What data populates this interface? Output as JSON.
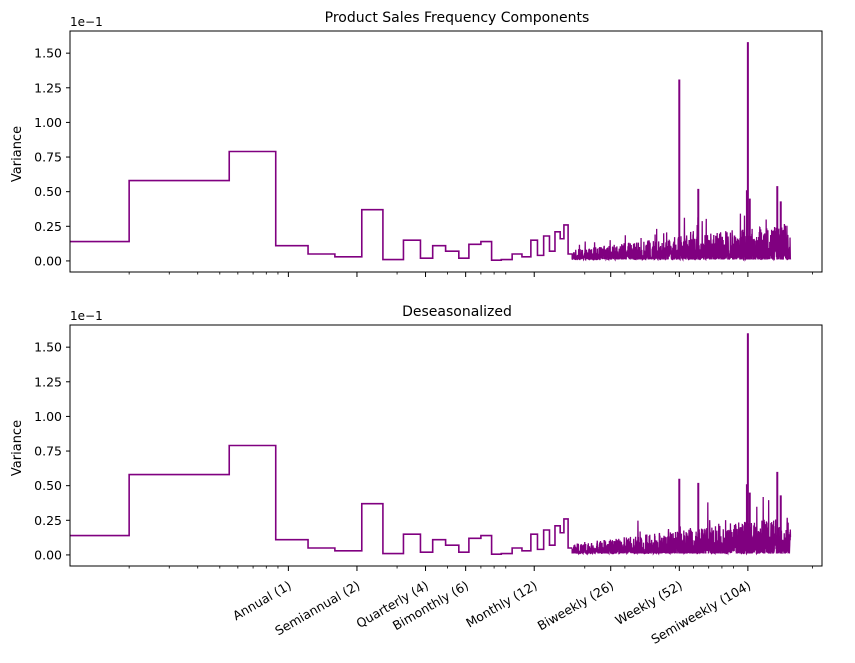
{
  "chart_data": [
    {
      "type": "line",
      "title": "Product Sales Frequency Components",
      "ylabel": "Variance",
      "xlabel": "",
      "y_offset_label": "1e−1",
      "ylim": [
        -0.08,
        1.66
      ],
      "yticks": [
        "0.00",
        "0.25",
        "0.50",
        "0.75",
        "1.00",
        "1.25",
        "1.50"
      ],
      "x_scale": "log",
      "xlim": [
        0.11,
        220
      ],
      "xticks": [],
      "xtick_positions": [
        1,
        2,
        4,
        6,
        12,
        26,
        52,
        104
      ],
      "grid": false,
      "color": "#800080",
      "step_segments": [
        {
          "x": [
            0.11,
            0.2
          ],
          "y": 0.14
        },
        {
          "x": [
            0.2,
            0.55
          ],
          "y": 0.58
        },
        {
          "x": [
            0.55,
            0.88
          ],
          "y": 0.79
        },
        {
          "x": [
            0.88,
            1.22
          ],
          "y": 0.11
        },
        {
          "x": [
            1.22,
            1.6
          ],
          "y": 0.05
        },
        {
          "x": [
            1.6,
            2.1
          ],
          "y": 0.03
        },
        {
          "x": [
            2.1,
            2.6
          ],
          "y": 0.37
        },
        {
          "x": [
            2.6,
            3.2
          ],
          "y": 0.01
        },
        {
          "x": [
            3.2,
            3.8
          ],
          "y": 0.15
        },
        {
          "x": [
            3.8,
            4.3
          ],
          "y": 0.02
        },
        {
          "x": [
            4.3,
            4.9
          ],
          "y": 0.11
        },
        {
          "x": [
            4.9,
            5.6
          ],
          "y": 0.07
        },
        {
          "x": [
            5.6,
            6.2
          ],
          "y": 0.02
        },
        {
          "x": [
            6.2,
            7.0
          ],
          "y": 0.12
        },
        {
          "x": [
            7.0,
            7.8
          ],
          "y": 0.14
        },
        {
          "x": [
            7.8,
            8.6
          ],
          "y": 0.005
        },
        {
          "x": [
            8.6,
            9.6
          ],
          "y": 0.01
        },
        {
          "x": [
            9.6,
            10.6
          ],
          "y": 0.05
        },
        {
          "x": [
            10.6,
            11.6
          ],
          "y": 0.03
        },
        {
          "x": [
            11.6,
            12.4
          ],
          "y": 0.15
        },
        {
          "x": [
            12.4,
            13.2
          ],
          "y": 0.04
        },
        {
          "x": [
            13.2,
            14.0
          ],
          "y": 0.18
        },
        {
          "x": [
            14.0,
            14.8
          ],
          "y": 0.07
        },
        {
          "x": [
            14.8,
            15.6
          ],
          "y": 0.21
        },
        {
          "x": [
            15.6,
            16.2
          ],
          "y": 0.16
        },
        {
          "x": [
            16.2,
            16.9
          ],
          "y": 0.26
        },
        {
          "x": [
            16.9,
            17.6
          ],
          "y": 0.05
        }
      ],
      "noise_region": {
        "x": [
          17.6,
          160
        ],
        "baseline": 0.01
      },
      "spikes": [
        {
          "x": 52,
          "y": 1.31
        },
        {
          "x": 104,
          "y": 1.58
        },
        {
          "x": 106,
          "y": 0.45
        },
        {
          "x": 103,
          "y": 0.51
        },
        {
          "x": 63,
          "y": 0.52
        },
        {
          "x": 140,
          "y": 0.54
        },
        {
          "x": 145,
          "y": 0.43
        }
      ]
    },
    {
      "type": "line",
      "title": "Deseasonalized",
      "ylabel": "Variance",
      "xlabel": "",
      "y_offset_label": "1e−1",
      "ylim": [
        -0.08,
        1.66
      ],
      "yticks": [
        "0.00",
        "0.25",
        "0.50",
        "0.75",
        "1.00",
        "1.25",
        "1.50"
      ],
      "x_scale": "log",
      "xlim": [
        0.11,
        220
      ],
      "xticks": [
        "Annual (1)",
        "Semiannual (2)",
        "Quarterly (4)",
        "Bimonthly (6)",
        "Monthly (12)",
        "Biweekly (26)",
        "Weekly (52)",
        "Semiweekly (104)"
      ],
      "xtick_positions": [
        1,
        2,
        4,
        6,
        12,
        26,
        52,
        104
      ],
      "grid": false,
      "color": "#800080",
      "step_segments": [
        {
          "x": [
            0.11,
            0.2
          ],
          "y": 0.14
        },
        {
          "x": [
            0.2,
            0.55
          ],
          "y": 0.58
        },
        {
          "x": [
            0.55,
            0.88
          ],
          "y": 0.79
        },
        {
          "x": [
            0.88,
            1.22
          ],
          "y": 0.11
        },
        {
          "x": [
            1.22,
            1.6
          ],
          "y": 0.05
        },
        {
          "x": [
            1.6,
            2.1
          ],
          "y": 0.03
        },
        {
          "x": [
            2.1,
            2.6
          ],
          "y": 0.37
        },
        {
          "x": [
            2.6,
            3.2
          ],
          "y": 0.01
        },
        {
          "x": [
            3.2,
            3.8
          ],
          "y": 0.15
        },
        {
          "x": [
            3.8,
            4.3
          ],
          "y": 0.02
        },
        {
          "x": [
            4.3,
            4.9
          ],
          "y": 0.11
        },
        {
          "x": [
            4.9,
            5.6
          ],
          "y": 0.07
        },
        {
          "x": [
            5.6,
            6.2
          ],
          "y": 0.02
        },
        {
          "x": [
            6.2,
            7.0
          ],
          "y": 0.12
        },
        {
          "x": [
            7.0,
            7.8
          ],
          "y": 0.14
        },
        {
          "x": [
            7.8,
            8.6
          ],
          "y": 0.005
        },
        {
          "x": [
            8.6,
            9.6
          ],
          "y": 0.01
        },
        {
          "x": [
            9.6,
            10.6
          ],
          "y": 0.05
        },
        {
          "x": [
            10.6,
            11.6
          ],
          "y": 0.03
        },
        {
          "x": [
            11.6,
            12.4
          ],
          "y": 0.15
        },
        {
          "x": [
            12.4,
            13.2
          ],
          "y": 0.04
        },
        {
          "x": [
            13.2,
            14.0
          ],
          "y": 0.18
        },
        {
          "x": [
            14.0,
            14.8
          ],
          "y": 0.07
        },
        {
          "x": [
            14.8,
            15.6
          ],
          "y": 0.21
        },
        {
          "x": [
            15.6,
            16.2
          ],
          "y": 0.16
        },
        {
          "x": [
            16.2,
            16.9
          ],
          "y": 0.26
        },
        {
          "x": [
            16.9,
            17.6
          ],
          "y": 0.05
        }
      ],
      "noise_region": {
        "x": [
          17.6,
          160
        ],
        "baseline": 0.01
      },
      "spikes": [
        {
          "x": 52,
          "y": 0.55
        },
        {
          "x": 104,
          "y": 1.6
        },
        {
          "x": 106,
          "y": 0.45
        },
        {
          "x": 103,
          "y": 0.51
        },
        {
          "x": 63,
          "y": 0.52
        },
        {
          "x": 140,
          "y": 0.6
        },
        {
          "x": 145,
          "y": 0.43
        }
      ]
    }
  ]
}
